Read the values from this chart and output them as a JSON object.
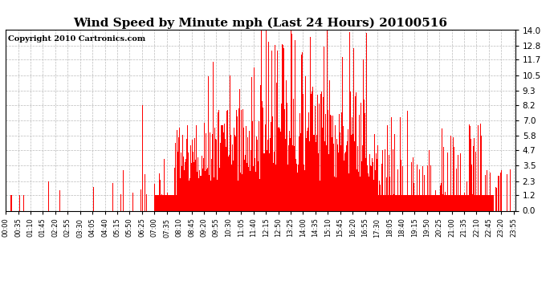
{
  "title": "Wind Speed by Minute mph (Last 24 Hours) 20100516",
  "copyright": "Copyright 2010 Cartronics.com",
  "background_color": "#ffffff",
  "bar_color": "#ff0000",
  "yticks": [
    0.0,
    1.2,
    2.3,
    3.5,
    4.7,
    5.8,
    7.0,
    8.2,
    9.3,
    10.5,
    11.7,
    12.8,
    14.0
  ],
  "ylim": [
    0.0,
    14.0
  ],
  "grid_color": "#bbbbbb",
  "title_fontsize": 11,
  "copyright_fontsize": 7,
  "tick_minutes": [
    0,
    35,
    70,
    105,
    140,
    175,
    210,
    245,
    280,
    315,
    350,
    385,
    420,
    455,
    490,
    525,
    560,
    595,
    630,
    665,
    700,
    735,
    770,
    805,
    840,
    875,
    910,
    945,
    980,
    1015,
    1050,
    1085,
    1120,
    1155,
    1190,
    1225,
    1260,
    1295,
    1330,
    1365,
    1400,
    1435
  ],
  "tick_labels": [
    "00:00",
    "00:35",
    "01:10",
    "01:45",
    "02:20",
    "02:55",
    "03:30",
    "04:05",
    "04:40",
    "05:15",
    "05:50",
    "06:25",
    "07:00",
    "07:35",
    "08:10",
    "08:45",
    "09:20",
    "09:55",
    "10:30",
    "11:05",
    "11:40",
    "12:15",
    "12:50",
    "13:25",
    "14:00",
    "14:35",
    "15:10",
    "15:45",
    "16:20",
    "16:55",
    "17:30",
    "18:05",
    "18:40",
    "19:15",
    "19:50",
    "20:25",
    "21:00",
    "21:35",
    "22:10",
    "22:45",
    "23:20",
    "23:55"
  ]
}
